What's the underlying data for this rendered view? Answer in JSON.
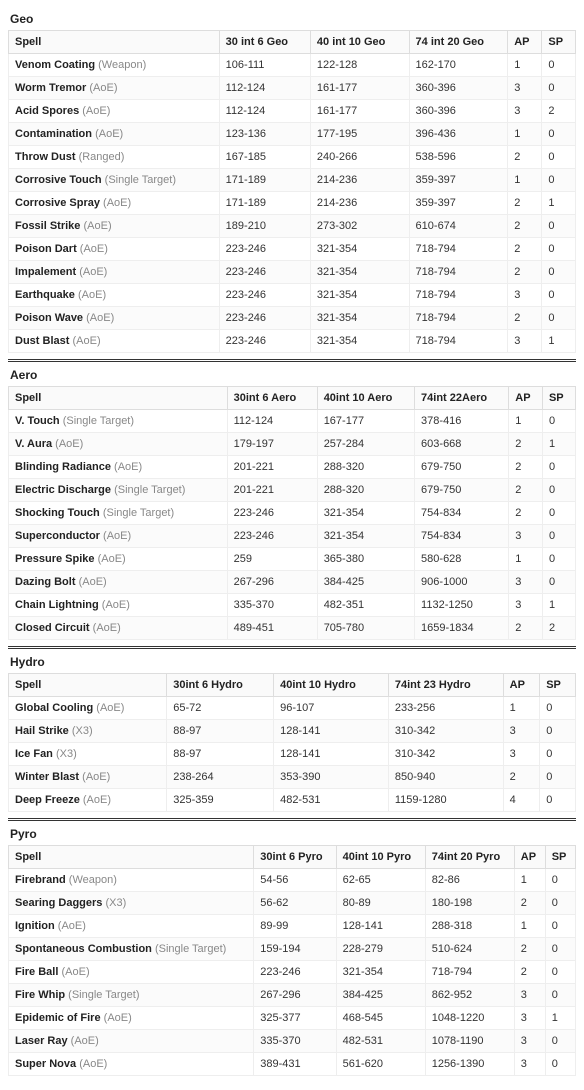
{
  "sections": [
    {
      "title": "Geo",
      "headers": [
        "Spell",
        "30 int 6 Geo",
        "40 int 10 Geo",
        "74 int 20 Geo",
        "AP",
        "SP"
      ],
      "rows": [
        {
          "name": "Venom Coating",
          "type": "Weapon",
          "v": [
            "106-111",
            "122-128",
            "162-170",
            "1",
            "0"
          ]
        },
        {
          "name": "Worm Tremor",
          "type": "AoE",
          "v": [
            "112-124",
            "161-177",
            "360-396",
            "3",
            "0"
          ]
        },
        {
          "name": "Acid Spores",
          "type": "AoE",
          "v": [
            "112-124",
            "161-177",
            "360-396",
            "3",
            "2"
          ]
        },
        {
          "name": "Contamination",
          "type": "AoE",
          "v": [
            "123-136",
            "177-195",
            "396-436",
            "1",
            "0"
          ]
        },
        {
          "name": "Throw Dust",
          "type": "Ranged",
          "v": [
            "167-185",
            "240-266",
            "538-596",
            "2",
            "0"
          ]
        },
        {
          "name": "Corrosive Touch",
          "type": "Single Target",
          "v": [
            "171-189",
            "214-236",
            "359-397",
            "1",
            "0"
          ]
        },
        {
          "name": "Corrosive Spray",
          "type": "AoE",
          "v": [
            "171-189",
            "214-236",
            "359-397",
            "2",
            "1"
          ]
        },
        {
          "name": "Fossil Strike",
          "type": "AoE",
          "v": [
            "189-210",
            "273-302",
            "610-674",
            "2",
            "0"
          ]
        },
        {
          "name": "Poison Dart",
          "type": "AoE",
          "v": [
            "223-246",
            "321-354",
            "718-794",
            "2",
            "0"
          ]
        },
        {
          "name": "Impalement",
          "type": "AoE",
          "v": [
            "223-246",
            "321-354",
            "718-794",
            "2",
            "0"
          ]
        },
        {
          "name": "Earthquake",
          "type": "AoE",
          "v": [
            "223-246",
            "321-354",
            "718-794",
            "3",
            "0"
          ]
        },
        {
          "name": "Poison Wave",
          "type": "AoE",
          "v": [
            "223-246",
            "321-354",
            "718-794",
            "2",
            "0"
          ]
        },
        {
          "name": "Dust Blast",
          "type": "AoE",
          "v": [
            "223-246",
            "321-354",
            "718-794",
            "3",
            "1"
          ]
        }
      ]
    },
    {
      "title": "Aero",
      "headers": [
        "Spell",
        "30int 6 Aero",
        "40int 10 Aero",
        "74int 22Aero",
        "AP",
        "SP"
      ],
      "rows": [
        {
          "name": "V. Touch",
          "type": "Single Target",
          "v": [
            "112-124",
            "167-177",
            "378-416",
            "1",
            "0"
          ]
        },
        {
          "name": "V. Aura",
          "type": "AoE",
          "v": [
            "179-197",
            "257-284",
            "603-668",
            "2",
            "1"
          ]
        },
        {
          "name": "Blinding Radiance",
          "type": "AoE",
          "v": [
            "201-221",
            "288-320",
            "679-750",
            "2",
            "0"
          ]
        },
        {
          "name": "Electric Discharge",
          "type": "Single Target",
          "v": [
            "201-221",
            "288-320",
            "679-750",
            "2",
            "0"
          ]
        },
        {
          "name": "Shocking Touch",
          "type": "Single Target",
          "v": [
            "223-246",
            "321-354",
            "754-834",
            "2",
            "0"
          ]
        },
        {
          "name": "Superconductor",
          "type": "AoE",
          "v": [
            "223-246",
            "321-354",
            "754-834",
            "3",
            "0"
          ]
        },
        {
          "name": "Pressure Spike",
          "type": "AoE",
          "v": [
            "259",
            "365-380",
            "580-628",
            "1",
            "0"
          ]
        },
        {
          "name": "Dazing Bolt",
          "type": "AoE",
          "v": [
            "267-296",
            "384-425",
            "906-1000",
            "3",
            "0"
          ]
        },
        {
          "name": "Chain Lightning",
          "type": "AoE",
          "v": [
            "335-370",
            "482-351",
            "1132-1250",
            "3",
            "1"
          ]
        },
        {
          "name": "Closed Circuit",
          "type": "AoE",
          "v": [
            "489-451",
            "705-780",
            "1659-1834",
            "2",
            "2"
          ]
        }
      ]
    },
    {
      "title": "Hydro",
      "headers": [
        "Spell",
        "30int 6 Hydro",
        "40int 10 Hydro",
        "74int 23 Hydro",
        "AP",
        "SP"
      ],
      "rows": [
        {
          "name": "Global Cooling",
          "type": "AoE",
          "v": [
            "65-72",
            "96-107",
            "233-256",
            "1",
            "0"
          ]
        },
        {
          "name": "Hail Strike",
          "type": "X3",
          "v": [
            "88-97",
            "128-141",
            "310-342",
            "3",
            "0"
          ]
        },
        {
          "name": "Ice Fan",
          "type": "X3",
          "v": [
            "88-97",
            "128-141",
            "310-342",
            "3",
            "0"
          ]
        },
        {
          "name": "Winter Blast",
          "type": "AoE",
          "v": [
            "238-264",
            "353-390",
            "850-940",
            "2",
            "0"
          ]
        },
        {
          "name": "Deep Freeze",
          "type": "AoE",
          "v": [
            "325-359",
            "482-531",
            "1159-1280",
            "4",
            "0"
          ]
        }
      ]
    },
    {
      "title": "Pyro",
      "headers": [
        "Spell",
        "30int 6 Pyro",
        "40int 10 Pyro",
        "74int 20 Pyro",
        "AP",
        "SP"
      ],
      "rows": [
        {
          "name": "Firebrand",
          "type": "Weapon",
          "v": [
            "54-56",
            "62-65",
            "82-86",
            "1",
            "0"
          ]
        },
        {
          "name": "Searing Daggers",
          "type": "X3",
          "v": [
            "56-62",
            "80-89",
            "180-198",
            "2",
            "0"
          ]
        },
        {
          "name": "Ignition",
          "type": "AoE",
          "v": [
            "89-99",
            "128-141",
            "288-318",
            "1",
            "0"
          ]
        },
        {
          "name": "Spontaneous Combustion",
          "type": "Single Target",
          "v": [
            "159-194",
            "228-279",
            "510-624",
            "2",
            "0"
          ]
        },
        {
          "name": "Fire Ball",
          "type": "AoE",
          "v": [
            "223-246",
            "321-354",
            "718-794",
            "2",
            "0"
          ]
        },
        {
          "name": "Fire Whip",
          "type": "Single Target",
          "v": [
            "267-296",
            "384-425",
            "862-952",
            "3",
            "0"
          ]
        },
        {
          "name": "Epidemic of Fire",
          "type": "AoE",
          "v": [
            "325-377",
            "468-545",
            "1048-1220",
            "3",
            "1"
          ]
        },
        {
          "name": "Laser Ray",
          "type": "AoE",
          "v": [
            "335-370",
            "482-531",
            "1078-1190",
            "3",
            "0"
          ]
        },
        {
          "name": "Super Nova",
          "type": "AoE",
          "v": [
            "389-431",
            "561-620",
            "1256-1390",
            "3",
            "0"
          ]
        }
      ]
    }
  ]
}
